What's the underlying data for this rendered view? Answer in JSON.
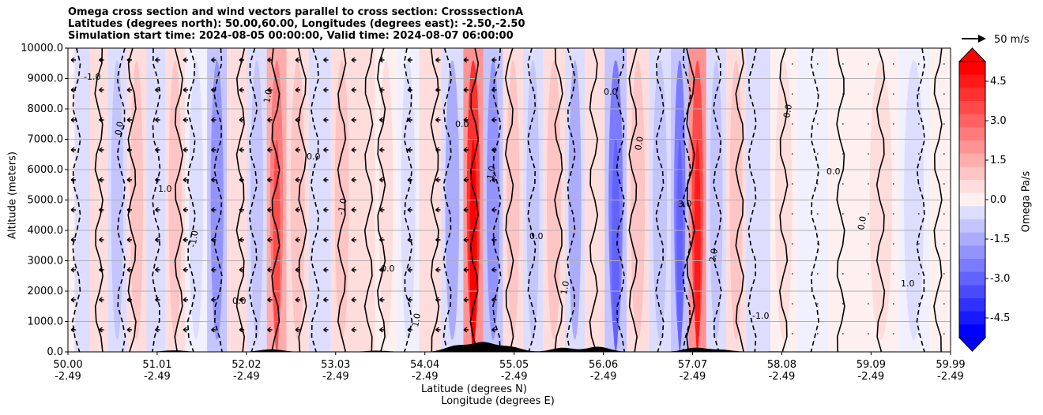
{
  "chart_data": {
    "type": "heatmap",
    "title_lines": [
      "Omega cross section and wind vectors parallel to cross section: CrosssectionA",
      "Latitudes (degrees north): 50.00,60.00, Longitudes (degrees east): -2.50,-2.50",
      "Simulation start time: 2024-08-05 00:00:00, Valid time: 2024-08-07 06:00:00"
    ],
    "ylabel": "Altitude (meters)",
    "xlabel_lat": "Latitude (degrees N)",
    "xlabel_lon": "Longitude (degrees E)",
    "ylim": [
      0,
      10000
    ],
    "xlim": [
      50.0,
      59.99
    ],
    "yticks": [
      "0.0",
      "1000.0",
      "2000.0",
      "3000.0",
      "4000.0",
      "5000.0",
      "6000.0",
      "7000.0",
      "8000.0",
      "9000.0",
      "10000.0"
    ],
    "ytick_values": [
      0,
      1000,
      2000,
      3000,
      4000,
      5000,
      6000,
      7000,
      8000,
      9000,
      10000
    ],
    "xticks_lat": [
      "50.00",
      "51.01",
      "52.02",
      "53.03",
      "54.04",
      "55.05",
      "56.06",
      "57.07",
      "58.08",
      "59.09",
      "59.99"
    ],
    "xticks_lon": [
      "-2.49",
      "-2.49",
      "-2.49",
      "-2.49",
      "-2.49",
      "-2.49",
      "-2.49",
      "-2.49",
      "-2.49",
      "-2.49",
      "-2.49"
    ],
    "xtick_values": [
      50.0,
      51.01,
      52.02,
      53.03,
      54.04,
      55.05,
      56.06,
      57.07,
      58.08,
      59.09,
      59.99
    ],
    "colorbar": {
      "label": "Omega Pa/s",
      "range": [
        -5.25,
        5.25
      ],
      "ticks": [
        "-4.5",
        "-3.0",
        "-1.5",
        "0.0",
        "1.5",
        "3.0",
        "4.5"
      ],
      "tick_values": [
        -4.5,
        -3.0,
        -1.5,
        0.0,
        1.5,
        3.0,
        4.5
      ],
      "negative_color": "#0000ff",
      "positive_color": "#ff0000",
      "extend": "both"
    },
    "vector_legend": "50 m/s",
    "contour_labels": [
      "-1.0",
      "0.0",
      "1.0",
      "-1.0",
      "0.0",
      "1.0",
      "0.0",
      "-1.0",
      "0.0",
      "1.0",
      "0.0",
      "-1.0",
      "0.0",
      "1.0",
      "0.0",
      "0.0",
      "3.0",
      "2.0",
      "-1.0",
      "0.0",
      "0.0",
      "0.0",
      "1.0"
    ],
    "omega_columns": [
      {
        "lat": 50.15,
        "value": -0.6
      },
      {
        "lat": 50.35,
        "value": 0.5
      },
      {
        "lat": 50.55,
        "value": -1.0
      },
      {
        "lat": 50.78,
        "value": 0.8
      },
      {
        "lat": 51.0,
        "value": -0.7
      },
      {
        "lat": 51.2,
        "value": 1.0
      },
      {
        "lat": 51.45,
        "value": -0.5
      },
      {
        "lat": 51.7,
        "value": -2.0
      },
      {
        "lat": 51.9,
        "value": 0.6
      },
      {
        "lat": 52.15,
        "value": -1.2
      },
      {
        "lat": 52.35,
        "value": 2.5
      },
      {
        "lat": 52.6,
        "value": 1.0
      },
      {
        "lat": 52.85,
        "value": -0.6
      },
      {
        "lat": 53.1,
        "value": 0.8
      },
      {
        "lat": 53.35,
        "value": 0.5
      },
      {
        "lat": 53.6,
        "value": 0.3
      },
      {
        "lat": 53.85,
        "value": -0.3
      },
      {
        "lat": 54.1,
        "value": 0.7
      },
      {
        "lat": 54.35,
        "value": -1.5
      },
      {
        "lat": 54.6,
        "value": 4.0
      },
      {
        "lat": 54.8,
        "value": -1.8
      },
      {
        "lat": 55.05,
        "value": 0.8
      },
      {
        "lat": 55.25,
        "value": -1.2
      },
      {
        "lat": 55.5,
        "value": 0.9
      },
      {
        "lat": 55.75,
        "value": -1.5
      },
      {
        "lat": 55.95,
        "value": 0.5
      },
      {
        "lat": 56.2,
        "value": -2.5
      },
      {
        "lat": 56.45,
        "value": 1.2
      },
      {
        "lat": 56.7,
        "value": -1.0
      },
      {
        "lat": 56.95,
        "value": -2.5
      },
      {
        "lat": 57.1,
        "value": 3.5
      },
      {
        "lat": 57.35,
        "value": -1.0
      },
      {
        "lat": 57.55,
        "value": 0.8
      },
      {
        "lat": 57.8,
        "value": -0.7
      },
      {
        "lat": 58.1,
        "value": 0.4
      },
      {
        "lat": 58.4,
        "value": -0.2
      },
      {
        "lat": 58.8,
        "value": 0.2
      },
      {
        "lat": 59.2,
        "value": 0.3
      },
      {
        "lat": 59.6,
        "value": -0.3
      },
      {
        "lat": 59.9,
        "value": 0.2
      }
    ]
  }
}
